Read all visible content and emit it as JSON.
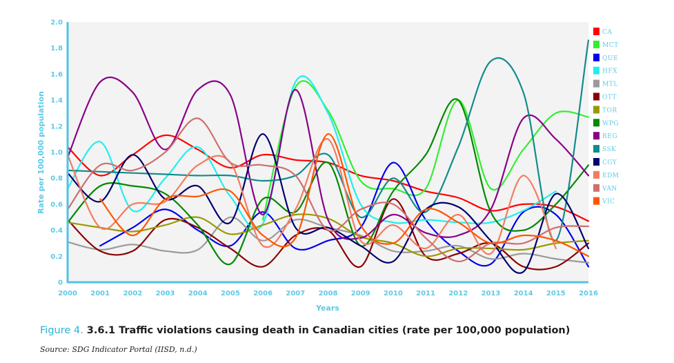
{
  "chart_data": {
    "type": "line",
    "xlabel": "Years",
    "ylabel": "Rate per 100,000 population",
    "x": [
      2000,
      2001,
      2002,
      2003,
      2004,
      2005,
      2006,
      2007,
      2008,
      2009,
      2010,
      2011,
      2012,
      2013,
      2014,
      2015,
      2016
    ],
    "xlim": [
      2000,
      2016
    ],
    "ylim": [
      0,
      2.0
    ],
    "yticks": [
      0,
      0.2,
      0.4,
      0.6,
      0.8,
      1.0,
      1.2,
      1.4,
      1.6,
      1.8,
      2.0
    ],
    "ytick_labels": [
      "0",
      "0.2",
      "0.4",
      "0.6",
      "0.8",
      "1.0",
      "1.2",
      "1.4",
      "1.6",
      "1.8",
      "2.0"
    ],
    "grid": false,
    "legend_position": "right",
    "series": [
      {
        "name": "CA",
        "color": "#ff0000",
        "values": [
          1.04,
          0.82,
          0.98,
          1.13,
          1.02,
          0.88,
          0.98,
          0.94,
          0.92,
          0.82,
          0.78,
          0.7,
          0.65,
          0.55,
          0.6,
          0.58,
          0.47
        ]
      },
      {
        "name": "MCT",
        "color": "#33ee33",
        "values": [
          null,
          null,
          null,
          null,
          null,
          null,
          0.48,
          1.5,
          1.32,
          0.78,
          0.72,
          0.72,
          1.4,
          0.72,
          1.02,
          1.3,
          1.27
        ]
      },
      {
        "name": "QUE",
        "color": "#0000ee",
        "values": [
          null,
          0.28,
          0.42,
          0.56,
          0.4,
          0.28,
          0.54,
          0.26,
          0.32,
          0.42,
          0.92,
          0.48,
          0.24,
          0.14,
          0.54,
          0.52,
          0.12
        ]
      },
      {
        "name": "HFX",
        "color": "#22eeee",
        "values": [
          0.72,
          1.08,
          0.55,
          0.8,
          1.04,
          0.66,
          0.45,
          1.54,
          1.3,
          0.6,
          0.46,
          0.48,
          0.46,
          0.46,
          0.55,
          0.7,
          null
        ]
      },
      {
        "name": "MTL",
        "color": "#9a9a9a",
        "values": [
          0.31,
          0.25,
          0.29,
          0.24,
          0.25,
          0.5,
          0.32,
          0.48,
          0.42,
          0.36,
          0.24,
          0.24,
          0.28,
          0.18,
          0.22,
          0.18,
          0.15
        ]
      },
      {
        "name": "OTT",
        "color": "#8b0000",
        "values": [
          0.48,
          0.24,
          0.24,
          0.48,
          0.42,
          0.26,
          0.12,
          0.36,
          0.4,
          0.12,
          0.64,
          0.2,
          0.22,
          0.3,
          0.12,
          0.12,
          0.3
        ]
      },
      {
        "name": "TOR",
        "color": "#999900",
        "values": [
          0.46,
          0.42,
          0.39,
          0.44,
          0.5,
          0.37,
          0.44,
          0.52,
          0.49,
          0.35,
          0.3,
          0.2,
          0.26,
          0.26,
          0.25,
          0.3,
          0.32
        ]
      },
      {
        "name": "WPG",
        "color": "#008800",
        "values": [
          0.46,
          0.74,
          0.74,
          0.68,
          0.44,
          0.14,
          0.64,
          0.54,
          0.92,
          0.28,
          0.7,
          0.98,
          1.4,
          0.54,
          0.4,
          0.6,
          0.9
        ]
      },
      {
        "name": "REG",
        "color": "#880088",
        "values": [
          0.96,
          1.54,
          1.46,
          1.02,
          1.48,
          1.44,
          0.52,
          1.48,
          0.48,
          0.34,
          0.52,
          0.38,
          0.36,
          0.56,
          1.26,
          1.1,
          0.82
        ]
      },
      {
        "name": "SSK",
        "color": "#118b8b",
        "values": [
          0.86,
          0.85,
          0.84,
          0.83,
          0.82,
          0.82,
          0.78,
          0.82,
          0.98,
          0.5,
          0.8,
          0.54,
          1.04,
          1.7,
          1.46,
          0.32,
          1.86
        ]
      },
      {
        "name": "CGY",
        "color": "#00006e",
        "values": [
          0.84,
          0.62,
          0.98,
          0.64,
          0.74,
          0.46,
          1.14,
          0.42,
          0.42,
          0.28,
          0.16,
          0.56,
          0.58,
          0.32,
          0.08,
          0.68,
          0.26
        ]
      },
      {
        "name": "EDM",
        "color": "#f47b60",
        "values": [
          0.98,
          0.42,
          0.6,
          0.62,
          0.9,
          0.92,
          0.28,
          0.56,
          1.1,
          0.32,
          0.44,
          0.26,
          0.52,
          0.22,
          0.82,
          0.26,
          null
        ]
      },
      {
        "name": "VAN",
        "color": "#cd6f6f",
        "values": [
          0.56,
          0.9,
          0.86,
          1.0,
          1.26,
          0.92,
          0.9,
          0.82,
          0.4,
          0.56,
          0.6,
          0.34,
          0.16,
          0.3,
          0.3,
          0.42,
          0.43
        ]
      },
      {
        "name": "VIC",
        "color": "#ff5500",
        "values": [
          null,
          0.64,
          0.36,
          0.64,
          0.66,
          0.7,
          0.36,
          0.34,
          1.14,
          0.44,
          0.3,
          0.56,
          0.46,
          0.3,
          0.36,
          0.32,
          0.2
        ]
      }
    ]
  },
  "caption": {
    "figure_label": "Figure 4.",
    "title": "3.6.1 Traffic violations causing death in Canadian cities (rate per 100,000 population)"
  },
  "source": "Source: SDG Indicator Portal (IISD, n.d.)"
}
